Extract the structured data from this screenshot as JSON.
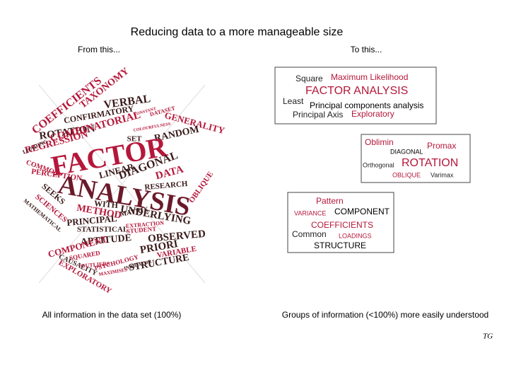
{
  "title": "Reducing data to a more manageable size",
  "left_heading": "From this...",
  "right_heading": "To this...",
  "word_cloud": {
    "words": [
      "COEFFICIENTS",
      "TAXONOMY",
      "VERBAL",
      "CONFIRMATORY",
      "DATASET",
      "CONSTANT",
      "ROTATION",
      "COMBINATORIAL",
      "REGRESSION",
      "LOADING",
      "GENERALITY",
      "RANDOM",
      "SET",
      "COLOURFULNESS",
      "FACTOR",
      "COMMON",
      "PERCEPTION",
      "LINEAR",
      "DIAGONAL",
      "DATA",
      "OBLIQUE",
      "ANALYSIS",
      "RESEARCH",
      "SEEKS",
      "SCIENCES",
      "MATHEMATICAL",
      "METHOD",
      "WITH",
      "UNDERLYING",
      "MATRIX",
      "PRINCIPAL",
      "EXTRACTION",
      "STATISTICAL",
      "STUDENT",
      "APTITUDE",
      "OBSERVED",
      "PRIORI",
      "COMPONENT",
      "VARIABLE",
      "SQUARED",
      "CAUSALITY",
      "PSYCHOLOGY",
      "OUTLIERS",
      "STRUCTURE",
      "INDICATOR",
      "EXPLORATORY",
      "MAXIMISES"
    ]
  },
  "boxes": [
    {
      "words": [
        "Square",
        "Maximum Likelihood",
        "FACTOR ANALYSIS",
        "Least",
        "Principal components analysis",
        "Principal Axis",
        "Exploratory"
      ]
    },
    {
      "words": [
        "Oblimin",
        "Promax",
        "DIAGONAL",
        "Orthogonal",
        "ROTATION",
        "OBLIQUE",
        "Varimax"
      ]
    },
    {
      "words": [
        "Pattern",
        "VARIANCE",
        "COMPONENT",
        "COEFFICIENTS",
        "Common",
        "LOADINGS",
        "STRUCTURE"
      ]
    }
  ],
  "left_caption": "All information in the data set (100%)",
  "right_caption": "Groups of information (<100%) more easily understood",
  "signature": "TG"
}
